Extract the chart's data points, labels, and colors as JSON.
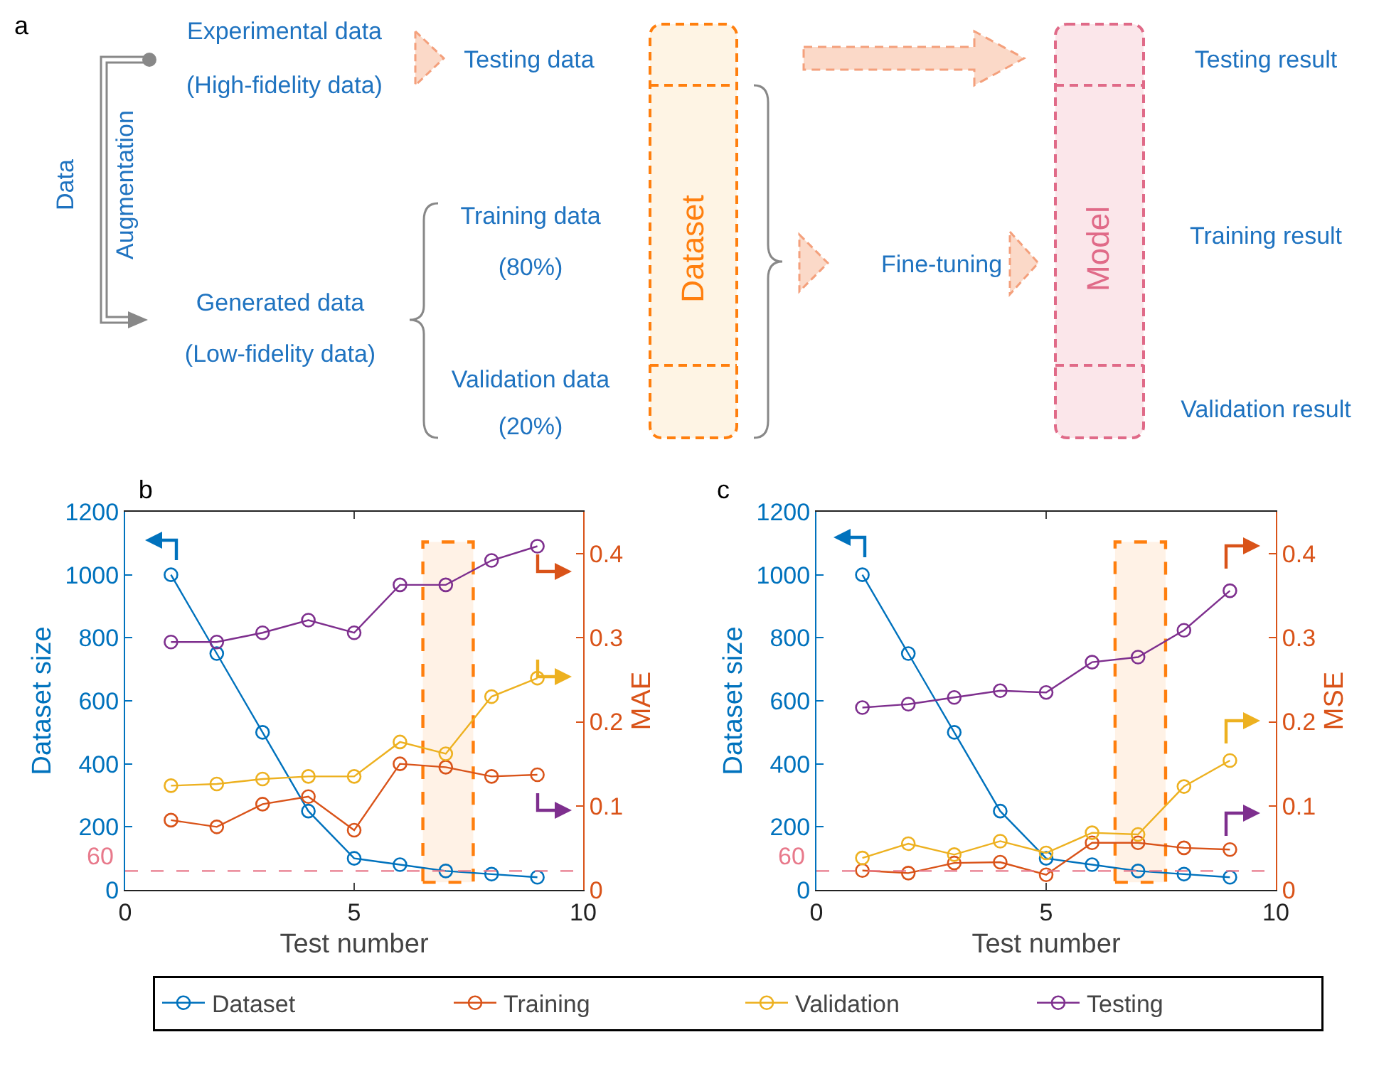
{
  "chart_data": [
    {
      "type": "other",
      "title": "a",
      "annotations": [
        "Experimental data",
        "(High-fidelity data)",
        "Testing data",
        "Data",
        "Augmentation",
        "Generated data",
        "(Low-fidelity data)",
        "Training data",
        "(80%)",
        "Validation data",
        "(20%)",
        "Dataset",
        "Fine-tuning",
        "Model",
        "Testing result",
        "Training result",
        "Validation result"
      ]
    },
    {
      "type": "line",
      "title": "b",
      "xlabel": "Test number",
      "ylabel": "Dataset size",
      "y2label": "MAE",
      "x": [
        1,
        2,
        3,
        4,
        5,
        6,
        7,
        8,
        9
      ],
      "xlim": [
        0,
        10
      ],
      "xticks": [
        0,
        5,
        10
      ],
      "ylim": [
        0,
        1200
      ],
      "yticks": [
        0,
        200,
        400,
        600,
        800,
        1000,
        1200
      ],
      "y2lim": [
        0,
        0.45
      ],
      "y2ticks": [
        0,
        0.1,
        0.2,
        0.3,
        0.4
      ],
      "marker": "circle",
      "legend": false,
      "grid": false,
      "series": [
        {
          "color": "#0072bd",
          "values": [
            1000,
            750,
            500,
            250,
            100,
            80,
            60,
            50,
            40
          ]
        },
        {
          "color": "#d95319",
          "axis": "y2",
          "values": [
            0.083,
            0.075,
            0.102,
            0.111,
            0.071,
            0.15,
            0.146,
            0.135,
            0.137
          ]
        },
        {
          "color": "#edb120",
          "axis": "y2",
          "values": [
            0.124,
            0.126,
            0.132,
            0.135,
            0.135,
            0.176,
            0.162,
            0.23,
            0.252
          ]
        },
        {
          "color": "#7e2f8e",
          "axis": "y2",
          "values": [
            0.295,
            0.295,
            0.306,
            0.321,
            0.306,
            0.363,
            0.363,
            0.392,
            0.409
          ]
        }
      ],
      "ref_lines": [
        {
          "axis": "y",
          "value": 60,
          "label": "60",
          "color": "#e8798b",
          "line_style": "dashed"
        }
      ],
      "bands": [
        {
          "axis": "x",
          "from": 6.5,
          "to": 7.6,
          "color": "#ff7f0e"
        }
      ]
    },
    {
      "type": "line",
      "title": "c",
      "xlabel": "Test number",
      "ylabel": "Dataset size",
      "y2label": "MSE",
      "x": [
        1,
        2,
        3,
        4,
        5,
        6,
        7,
        8,
        9
      ],
      "xlim": [
        0,
        10
      ],
      "xticks": [
        0,
        5,
        10
      ],
      "ylim": [
        0,
        1200
      ],
      "yticks": [
        0,
        200,
        400,
        600,
        800,
        1000,
        1200
      ],
      "y2lim": [
        0,
        0.45
      ],
      "y2ticks": [
        0,
        0.1,
        0.2,
        0.3,
        0.4
      ],
      "marker": "circle",
      "legend": "bottom",
      "grid": false,
      "series": [
        {
          "name": "Dataset",
          "color": "#0072bd",
          "values": [
            1000,
            750,
            500,
            250,
            100,
            80,
            60,
            50,
            40
          ]
        },
        {
          "name": "Training",
          "color": "#d95319",
          "axis": "y2",
          "values": [
            0.023,
            0.02,
            0.032,
            0.033,
            0.018,
            0.056,
            0.056,
            0.05,
            0.048
          ]
        },
        {
          "name": "Validation",
          "color": "#edb120",
          "axis": "y2",
          "values": [
            0.038,
            0.055,
            0.042,
            0.058,
            0.044,
            0.068,
            0.066,
            0.123,
            0.154
          ]
        },
        {
          "name": "Testing",
          "color": "#7e2f8e",
          "axis": "y2",
          "values": [
            0.217,
            0.221,
            0.229,
            0.237,
            0.235,
            0.271,
            0.277,
            0.309,
            0.356
          ]
        }
      ],
      "ref_lines": [
        {
          "axis": "y",
          "value": 60,
          "label": "60",
          "color": "#e8798b",
          "line_style": "dashed"
        }
      ],
      "bands": [
        {
          "axis": "x",
          "from": 6.5,
          "to": 7.6,
          "color": "#ff7f0e"
        }
      ]
    }
  ]
}
